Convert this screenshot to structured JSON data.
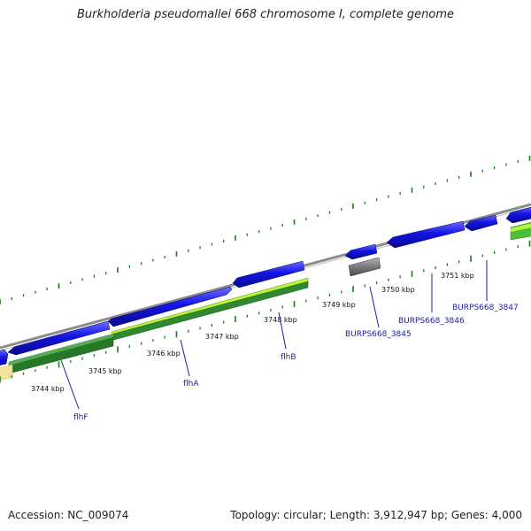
{
  "title": "Burkholderia pseudomallei 668 chromosome I, complete genome",
  "footer": {
    "accession_label": "Accession:",
    "accession": "NC_009074",
    "topology_label": "Topology:",
    "topology": "circular",
    "length_label": "Length:",
    "length": "3,912,947 bp",
    "genes_label": "Genes:",
    "genes": "4,000"
  },
  "ruler": {
    "unit": "kbp",
    "labels": [
      "3744 kbp",
      "3745 kbp",
      "3746 kbp",
      "3747 kbp",
      "3748 kbp",
      "3749 kbp",
      "3750 kbp",
      "3751 kbp"
    ]
  },
  "genes": [
    {
      "label": "flhF"
    },
    {
      "label": "flhA"
    },
    {
      "label": "flhB"
    },
    {
      "label": "BURPS668_3845"
    },
    {
      "label": "BURPS668_3846"
    },
    {
      "label": "BURPS668_3847"
    }
  ],
  "colors": {
    "forward_cds": "#1414e6",
    "reverse_dark": "#2f8a2f",
    "reverse_light": "#b8f53c",
    "pseudo": "#6e6e6e",
    "backbone": "#8c8c8c",
    "tick": "#1d7a1d",
    "cream": "#f3e39a",
    "label": "#1a1aa6"
  }
}
